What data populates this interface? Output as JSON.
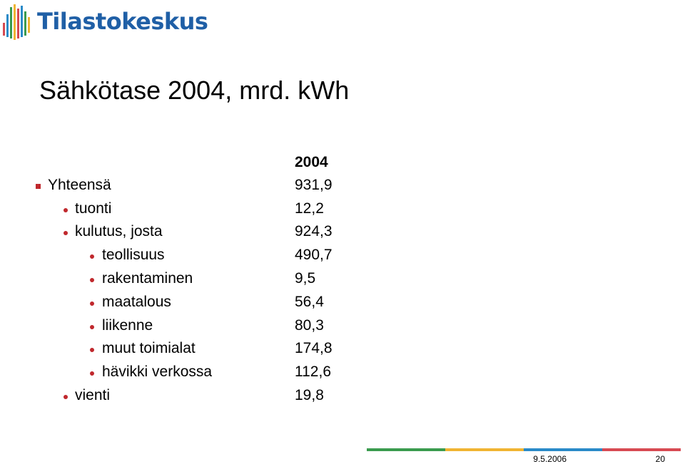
{
  "header": {
    "logo_text": "Tilastokeskus"
  },
  "slide": {
    "title": "Sähkötase 2004, mrd. kWh",
    "column_header": "2004",
    "rows": [
      {
        "label": "Yhteensä",
        "value": "931,9"
      },
      {
        "label": "tuonti",
        "value": "12,2"
      },
      {
        "label": "kulutus, josta",
        "value": "924,3"
      },
      {
        "label": "teollisuus",
        "value": "490,7"
      },
      {
        "label": "rakentaminen",
        "value": "9,5"
      },
      {
        "label": "maatalous",
        "value": "56,4"
      },
      {
        "label": "liikenne",
        "value": "80,3"
      },
      {
        "label": "muut toimialat",
        "value": "174,8"
      },
      {
        "label": "hävikki verkossa",
        "value": "112,6"
      },
      {
        "label": "vienti",
        "value": "19,8"
      }
    ]
  },
  "footer": {
    "date": "9.5.2006",
    "page": "20"
  },
  "colors": {
    "brand_blue": "#1f5fa6",
    "bullet_red": "#c0282d",
    "footer_stripes": [
      "#3a9b4e",
      "#f0b432",
      "#2a8ac8",
      "#d74a52"
    ]
  }
}
